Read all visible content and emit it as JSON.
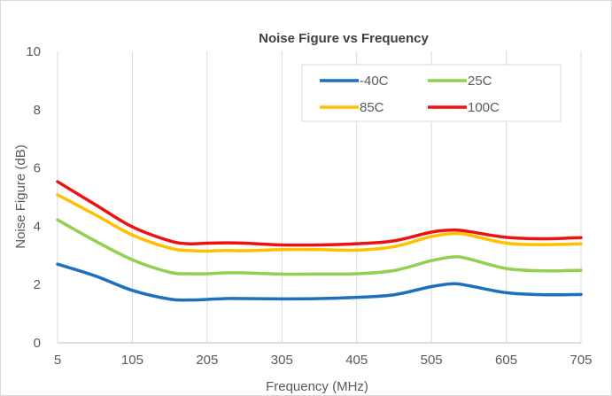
{
  "chart_data": {
    "type": "line",
    "title": "Noise Figure vs Frequency",
    "xlabel": "Frequency (MHz)",
    "ylabel": "Noise Figure (dB)",
    "xlim": [
      5,
      705
    ],
    "ylim": [
      0,
      10
    ],
    "xticks": [
      "5",
      "105",
      "205",
      "305",
      "405",
      "505",
      "605",
      "705"
    ],
    "yticks": [
      "0",
      "2",
      "4",
      "6",
      "8",
      "10"
    ],
    "grid": "vertical",
    "legend_position": "top-right",
    "x": [
      5,
      55,
      105,
      155,
      180,
      205,
      230,
      255,
      305,
      355,
      405,
      455,
      505,
      535,
      555,
      605,
      655,
      705
    ],
    "series": [
      {
        "name": "-40C",
        "color": "#1f6fc0",
        "values": [
          2.7,
          2.3,
          1.8,
          1.5,
          1.47,
          1.49,
          1.52,
          1.52,
          1.51,
          1.52,
          1.56,
          1.65,
          1.93,
          2.03,
          1.96,
          1.72,
          1.65,
          1.66
        ]
      },
      {
        "name": "25C",
        "color": "#92d050",
        "values": [
          4.22,
          3.5,
          2.85,
          2.42,
          2.37,
          2.37,
          2.4,
          2.4,
          2.36,
          2.36,
          2.37,
          2.48,
          2.82,
          2.95,
          2.88,
          2.55,
          2.47,
          2.49
        ]
      },
      {
        "name": "85C",
        "color": "#ffc000",
        "values": [
          5.08,
          4.4,
          3.7,
          3.25,
          3.17,
          3.15,
          3.17,
          3.16,
          3.2,
          3.2,
          3.18,
          3.3,
          3.65,
          3.75,
          3.7,
          3.42,
          3.37,
          3.4
        ]
      },
      {
        "name": "100C",
        "color": "#ee1111",
        "values": [
          5.53,
          4.75,
          3.98,
          3.5,
          3.4,
          3.42,
          3.43,
          3.42,
          3.36,
          3.36,
          3.4,
          3.5,
          3.8,
          3.87,
          3.82,
          3.62,
          3.57,
          3.61
        ]
      }
    ]
  },
  "colors": {
    "gridline": "#d9d9d9",
    "axis_line": "#bfbfbf",
    "legend_border": "#d9d9d9"
  }
}
